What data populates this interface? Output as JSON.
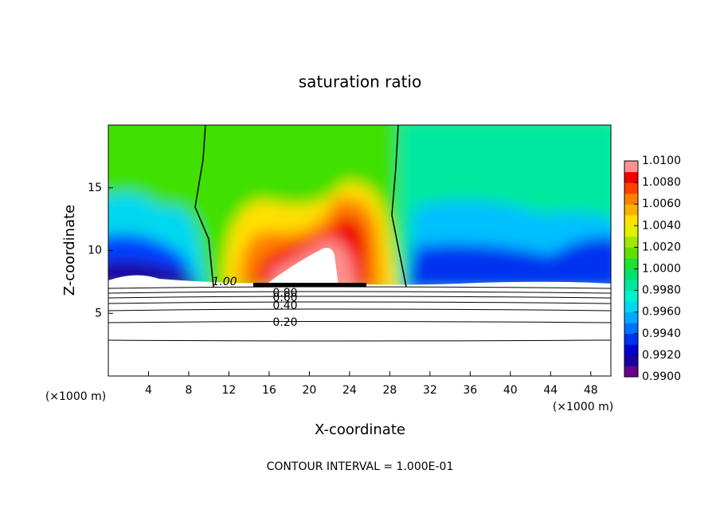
{
  "chart_data": {
    "type": "contour",
    "title": "saturation ratio",
    "x_label": "X-coordinate",
    "y_label": "Z-coordinate",
    "x_unit": "(×1000 m)",
    "footnote": "CONTOUR INTERVAL = 1.000E-01",
    "xlim": [
      0,
      50
    ],
    "xticks": [
      4,
      8,
      12,
      16,
      20,
      24,
      28,
      32,
      36,
      40,
      44,
      48
    ],
    "ylim": [
      0,
      20
    ],
    "yticks": [
      5,
      10,
      15
    ],
    "contour_labels": [
      "1.00",
      "0.80",
      "0.60",
      "0.40",
      "0.20"
    ],
    "colorbar": {
      "lim": [
        0.99,
        1.01
      ],
      "ticks": [
        {
          "value": 0.99,
          "label": "0.9900"
        },
        {
          "value": 0.992,
          "label": "0.9920"
        },
        {
          "value": 0.994,
          "label": "0.9940"
        },
        {
          "value": 0.996,
          "label": "0.9960"
        },
        {
          "value": 0.998,
          "label": "0.9980"
        },
        {
          "value": 1.0,
          "label": "1.0000"
        },
        {
          "value": 1.002,
          "label": "1.0020"
        },
        {
          "value": 1.004,
          "label": "1.0040"
        },
        {
          "value": 1.006,
          "label": "1.0060"
        },
        {
          "value": 1.008,
          "label": "1.0080"
        },
        {
          "value": 1.01,
          "label": "1.0100"
        }
      ],
      "colors": [
        "#6a0090",
        "#1a00a0",
        "#0000d0",
        "#0030f0",
        "#0070ff",
        "#00a8ff",
        "#00d8f0",
        "#00f0d0",
        "#00e8a0",
        "#00e070",
        "#20e030",
        "#60e000",
        "#a0e800",
        "#e0f000",
        "#ffe000",
        "#ffb000",
        "#ff8000",
        "#ff4000",
        "#f00000",
        "#ff9090"
      ]
    }
  }
}
